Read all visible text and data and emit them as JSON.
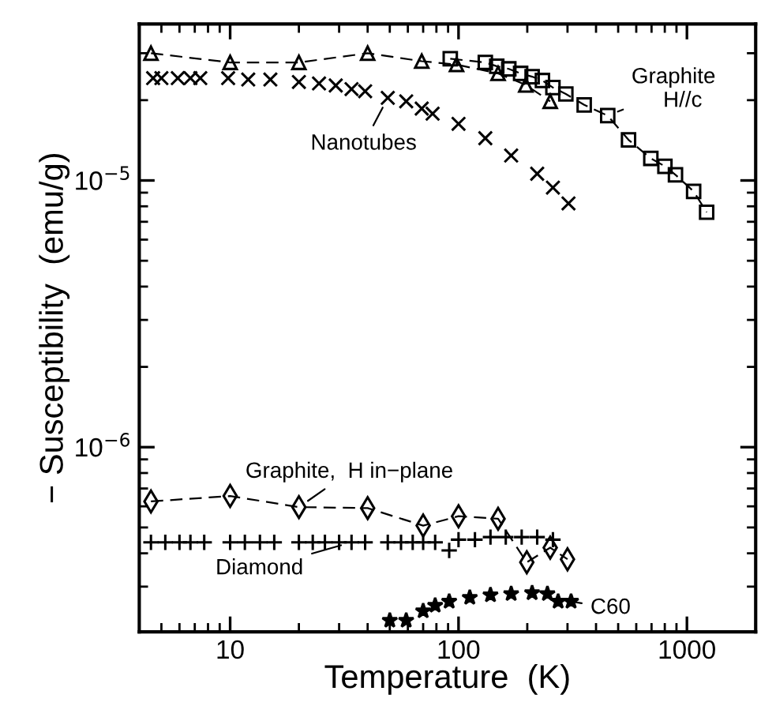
{
  "chart_data": {
    "type": "scatter",
    "xlabel": "Temperature  (K)",
    "ylabel": "− Susceptibility  (emu/g)",
    "log": "xy",
    "grid": false,
    "xlim": [
      4,
      2000
    ],
    "xticks": [
      10,
      100,
      1000
    ],
    "ylim": [
      2.03e-07,
      3.86e-05
    ],
    "yticks": [
      {
        "value": 1e-05,
        "label": "10$^{−5}$"
      },
      {
        "value": 1e-06,
        "label": "10$^{−6}$"
      }
    ],
    "series": [
      {
        "type": "line",
        "marker": "triangle",
        "line_style": "dashed",
        "color": "#000000",
        "x": [
          4.5,
          10,
          20,
          40,
          69,
          98,
          149,
          197,
          252
        ],
        "values": [
          3e-05,
          2.77e-05,
          2.77e-05,
          3e-05,
          2.8e-05,
          2.72e-05,
          2.52e-05,
          2.28e-05,
          1.98e-05
        ]
      },
      {
        "type": "line",
        "marker": "square",
        "line_style": "dashed",
        "color": "#000000",
        "x": [
          92,
          131,
          147,
          166,
          187,
          210,
          233,
          259,
          295,
          355,
          450,
          555,
          695,
          801,
          891,
          1070,
          1220
        ],
        "values": [
          2.86e-05,
          2.77e-05,
          2.68e-05,
          2.62e-05,
          2.52e-05,
          2.45e-05,
          2.37e-05,
          2.23e-05,
          2.11e-05,
          1.92e-05,
          1.75e-05,
          1.42e-05,
          1.21e-05,
          1.13e-05,
          1.05e-05,
          9.1e-06,
          7.6e-06
        ]
      },
      {
        "marker": "cross",
        "color": "#000000",
        "x": [
          4.6,
          5.0,
          5.9,
          6.7,
          7.4,
          9.8,
          12,
          15,
          20,
          24.5,
          29,
          34,
          39,
          49,
          59,
          69,
          77,
          100,
          131,
          170,
          221,
          259,
          303
        ],
        "values": [
          2.42e-05,
          2.42e-05,
          2.42e-05,
          2.42e-05,
          2.42e-05,
          2.42e-05,
          2.39e-05,
          2.39e-05,
          2.34e-05,
          2.31e-05,
          2.27e-05,
          2.2e-05,
          2.16e-05,
          2.04e-05,
          1.98e-05,
          1.86e-05,
          1.78e-05,
          1.63e-05,
          1.44e-05,
          1.24e-05,
          1.06e-05,
          9.4e-06,
          8.2e-06
        ]
      },
      {
        "type": "line",
        "marker": "diamond",
        "line_style": "dashed",
        "color": "#000000",
        "x": [
          4.5,
          10,
          20,
          40,
          70,
          100,
          149,
          199,
          252,
          300
        ],
        "values": [
          6.26e-07,
          6.56e-07,
          5.96e-07,
          5.91e-07,
          5.08e-07,
          5.51e-07,
          5.39e-07,
          3.7e-07,
          4.2e-07,
          3.8e-07
        ]
      },
      {
        "marker": "plus",
        "color": "#000000",
        "x": [
          4.5,
          5.2,
          6,
          6.7,
          7.7,
          10,
          11.6,
          13.5,
          15.6,
          20,
          23,
          26,
          30,
          34,
          39,
          49,
          56,
          63,
          70,
          79,
          91,
          100,
          118,
          138,
          161,
          189,
          221,
          259
        ],
        "values": [
          4.4e-07,
          4.4e-07,
          4.4e-07,
          4.4e-07,
          4.4e-07,
          4.4e-07,
          4.4e-07,
          4.4e-07,
          4.4e-07,
          4.4e-07,
          4.4e-07,
          4.4e-07,
          4.4e-07,
          4.4e-07,
          4.4e-07,
          4.4e-07,
          4.4e-07,
          4.4e-07,
          4.4e-07,
          4.4e-07,
          4.1e-07,
          4.5e-07,
          4.5e-07,
          4.6e-07,
          4.6e-07,
          4.6e-07,
          4.6e-07,
          4.5e-07
        ]
      },
      {
        "marker": "star",
        "color": "#000000",
        "x": [
          50,
          59,
          70,
          79,
          91,
          112,
          138,
          170,
          210,
          245,
          273,
          311
        ],
        "values": [
          2.24e-07,
          2.24e-07,
          2.43e-07,
          2.55e-07,
          2.64e-07,
          2.73e-07,
          2.79e-07,
          2.82e-07,
          2.84e-07,
          2.82e-07,
          2.64e-07,
          2.64e-07
        ]
      }
    ],
    "annotations": [
      {
        "text": "Graphite\n   H//c",
        "x": 450,
        "y": 1.75e-05
      },
      {
        "text": "Nanotubes",
        "x": 49,
        "y": 2.04e-05
      },
      {
        "text": "Graphite,  H in−plane",
        "x": 20,
        "y": 5.96e-07
      },
      {
        "text": "Diamond",
        "x": 34,
        "y": 4.4e-07
      },
      {
        "text": "C60",
        "x": 311,
        "y": 2.64e-07
      }
    ]
  }
}
